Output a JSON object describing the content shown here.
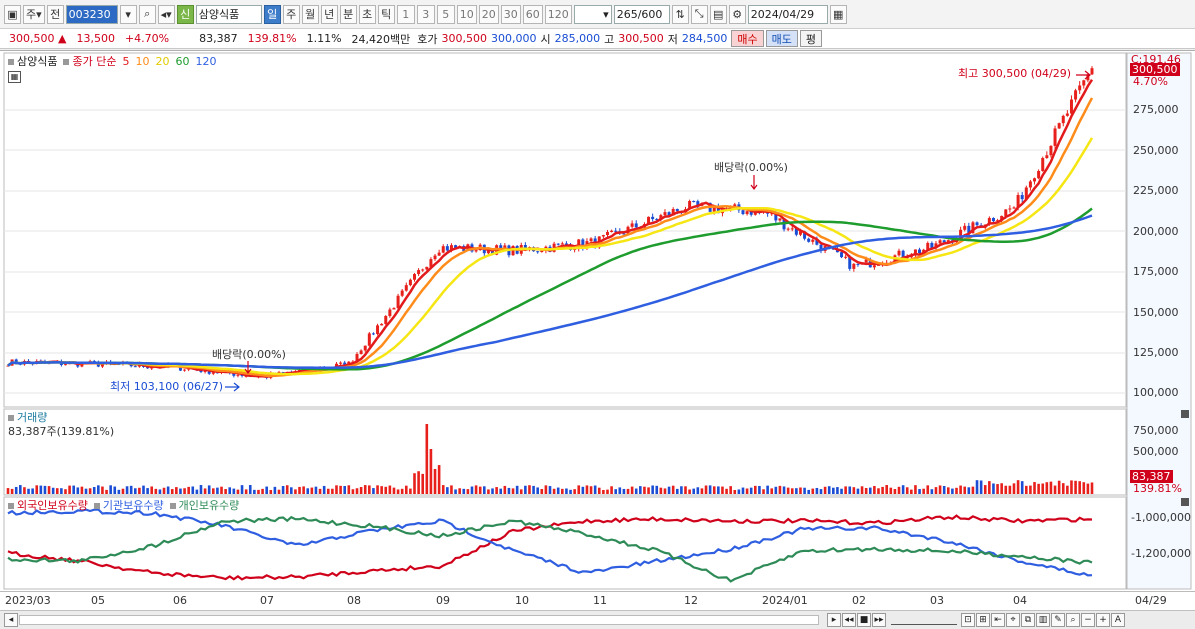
{
  "toolbar": {
    "market_label": "주",
    "prev_label": "전",
    "code": "003230",
    "tag": "신",
    "stock_name": "삼양식품",
    "periods": [
      "일",
      "주",
      "월",
      "년",
      "분",
      "초",
      "틱"
    ],
    "ticks": [
      "1",
      "3",
      "5",
      "10",
      "20",
      "30",
      "60",
      "120"
    ],
    "count": "265",
    "count_total": "/600",
    "date": "2024/04/29"
  },
  "quote": {
    "price": "300,500",
    "change": "13,500",
    "change_pct": "+4.70%",
    "volume": "83,387",
    "volume_ratio": "139.81%",
    "turnover_ratio": "1.11%",
    "amount": "24,420백만",
    "hoga_label": "호가",
    "hoga_ask": "300,500",
    "hoga_bid": "300,000",
    "open_label": "시",
    "open": "285,000",
    "high_label": "고",
    "high": "300,500",
    "low_label": "저",
    "low": "284,500",
    "buy_label": "매수",
    "sell_label": "매도",
    "eval_label": "평"
  },
  "price_panel": {
    "name_label": "삼양식품",
    "ma_label": "종가 단순",
    "ma_periods": [
      "5",
      "10",
      "20",
      "60",
      "120"
    ],
    "ma_colors": [
      "#e31a1c",
      "#ff8c1a",
      "#f5e614",
      "#1e9c2e",
      "#2f5fe0"
    ],
    "top_label": "C:191.46",
    "axis": [
      "275,000",
      "250,000",
      "225,000",
      "200,000",
      "175,000",
      "150,000",
      "125,000",
      "100,000"
    ],
    "current_tag": "300,500",
    "current_pct": "4.70%",
    "high_note": "최고 300,500 (04/29)",
    "low_note": "최저 103,100 (06/27)",
    "dividend_note": "배당락(0.00%)"
  },
  "volume_panel": {
    "label": "거래량",
    "value": "83,387주(139.81%)",
    "axis": [
      "750,000",
      "500,000"
    ],
    "current_tag": "83,387",
    "current_pct": "139.81%"
  },
  "holdings_panel": {
    "labels": [
      "외국인보유수량",
      "기관보유수량",
      "개인보유수량"
    ],
    "colors": [
      "#d0021b",
      "#2f5fe0",
      "#2e8b57"
    ],
    "axis": [
      "-1,000,000",
      "-1,200,000"
    ]
  },
  "x_axis": [
    "2023/03",
    "05",
    "06",
    "07",
    "08",
    "09",
    "10",
    "11",
    "12",
    "2024/01",
    "02",
    "03",
    "04"
  ],
  "x_axis_end": "04/29",
  "chart_data": {
    "type": "line",
    "title": "",
    "series_name": "종가",
    "x": [
      "2023/03",
      "2023/05",
      "2023/06",
      "2023/07",
      "2023/08",
      "2023/09",
      "2023/10",
      "2023/11",
      "2023/12",
      "2024/01",
      "2024/02",
      "2024/03",
      "2024/04",
      "2024/04/29"
    ],
    "close": [
      119000,
      118000,
      116000,
      110000,
      118000,
      190000,
      188000,
      193000,
      215000,
      212000,
      178000,
      190000,
      215000,
      300500
    ],
    "ylim": [
      100000,
      300000
    ]
  }
}
